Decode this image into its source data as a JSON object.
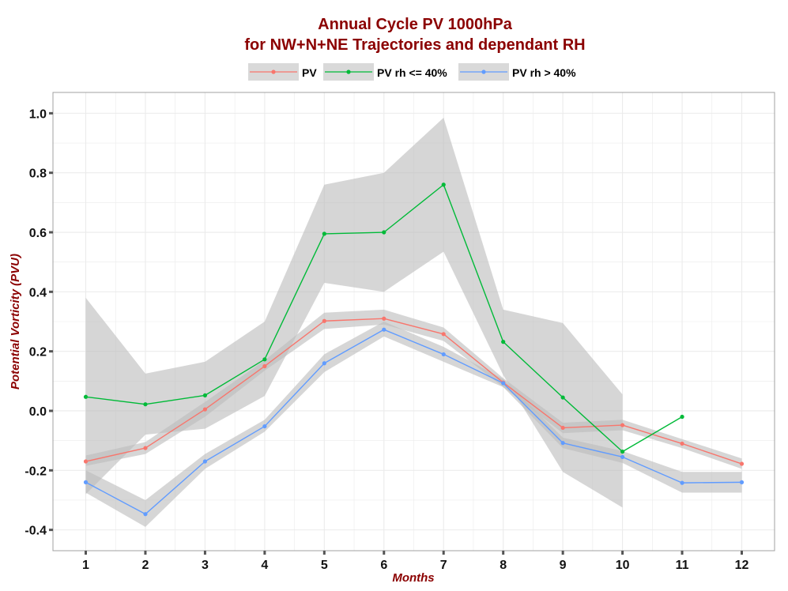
{
  "chart_data": {
    "type": "line",
    "title_line1": "Annual Cycle PV 1000hPa",
    "title_line2": "for NW+N+NE Trajectories and dependant RH",
    "xlabel": "Months",
    "ylabel": "Potential Vorticity (PVU)",
    "categories": [
      "1",
      "2",
      "3",
      "4",
      "5",
      "6",
      "7",
      "8",
      "9",
      "10",
      "11",
      "12"
    ],
    "x": [
      1,
      2,
      3,
      4,
      5,
      6,
      7,
      8,
      9,
      10,
      11,
      12
    ],
    "xlim": [
      0.45,
      12.55
    ],
    "ylim": [
      -0.47,
      1.07
    ],
    "yticks": [
      -0.4,
      -0.2,
      0.0,
      0.2,
      0.4,
      0.6,
      0.8,
      1.0
    ],
    "ytick_labels": [
      "-0.4",
      "-0.2",
      "0.0",
      "0.2",
      "0.4",
      "0.6",
      "0.8",
      "1.0"
    ],
    "grid": true,
    "legend_position": "top",
    "colors": {
      "title": "#8b0000",
      "axis_label": "#8b0000",
      "ribbon": "#bdbdbd",
      "panel_border": "#a0a0a0",
      "grid": "#ebebeb",
      "legend_key_bg": "#d9d9d9"
    },
    "series": [
      {
        "name": "PV",
        "color": "#f8766d",
        "values": [
          -0.17,
          -0.125,
          0.005,
          0.15,
          0.302,
          0.31,
          0.258,
          0.095,
          -0.057,
          -0.048,
          -0.11,
          -0.178
        ],
        "lower": [
          -0.185,
          -0.145,
          -0.02,
          0.135,
          0.275,
          0.29,
          0.235,
          0.08,
          -0.075,
          -0.065,
          -0.125,
          -0.195
        ],
        "upper": [
          -0.15,
          -0.105,
          0.03,
          0.17,
          0.33,
          0.34,
          0.28,
          0.11,
          -0.04,
          -0.03,
          -0.095,
          -0.16
        ]
      },
      {
        "name": "PV rh <= 40%",
        "color": "#00ba38",
        "values": [
          0.047,
          0.022,
          0.052,
          0.173,
          0.595,
          0.6,
          0.76,
          0.232,
          0.045,
          -0.137,
          -0.02,
          null
        ],
        "lower": [
          -0.28,
          -0.08,
          -0.06,
          0.05,
          0.43,
          0.4,
          0.535,
          0.12,
          -0.205,
          -0.325,
          null,
          null
        ],
        "upper": [
          0.38,
          0.125,
          0.165,
          0.3,
          0.76,
          0.8,
          0.985,
          0.34,
          0.295,
          0.055,
          null,
          null
        ]
      },
      {
        "name": "PV rh > 40%",
        "color": "#619cff",
        "values": [
          -0.24,
          -0.347,
          -0.17,
          -0.052,
          0.16,
          0.273,
          0.19,
          0.093,
          -0.108,
          -0.155,
          -0.242,
          -0.24
        ],
        "lower": [
          -0.275,
          -0.39,
          -0.195,
          -0.07,
          0.13,
          0.25,
          0.165,
          0.08,
          -0.125,
          -0.175,
          -0.275,
          -0.275
        ],
        "upper": [
          -0.2,
          -0.3,
          -0.145,
          -0.03,
          0.19,
          0.3,
          0.215,
          0.107,
          -0.09,
          -0.135,
          -0.205,
          -0.205
        ]
      }
    ]
  }
}
